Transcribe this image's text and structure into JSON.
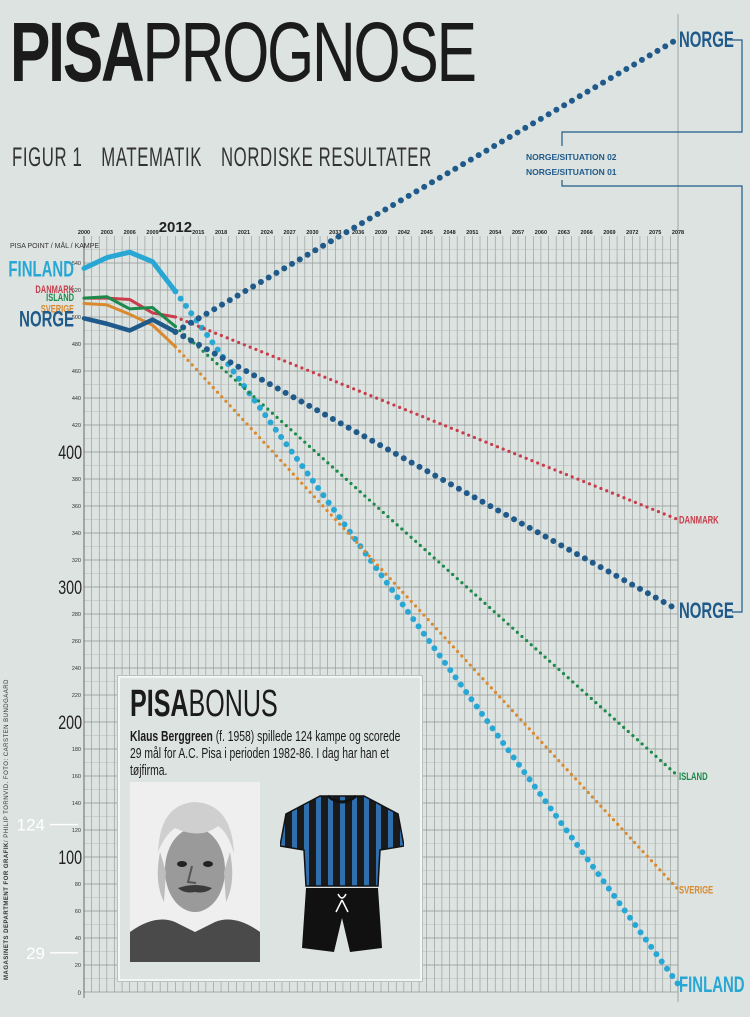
{
  "title": {
    "bold": "PISA",
    "light": "PROGNOSE"
  },
  "subtitle": [
    "FIGUR 1",
    "MATEMATIK",
    "NORDISKE RESULTATER"
  ],
  "legend_notes": {
    "situation_02": "NORGE/SITUATION 02",
    "situation_01": "NORGE/SITUATION 01"
  },
  "credit": {
    "bold": "MAGASINETS DEPARTMENT FOR GRAFIK",
    "rest": "/ PHILIP TORNVID. FOTO: CARSTEN BUNDGAARD"
  },
  "bonus": {
    "title_bold": "PISA",
    "title_light": "BONUS",
    "name": "Klaus Berggreen",
    "text": " (f. 1958) spillede 124 kampe og scorede 29 mål for A.C. Pisa i perioden 1982-86. I dag har han et tøjfirma."
  },
  "chart_data": {
    "type": "line",
    "ylabel": "PISA POINT / MÅL / KAMPE",
    "ylim": [
      0,
      555
    ],
    "y_ticks_small": [
      20,
      40,
      60,
      80,
      120,
      140,
      160,
      180,
      220,
      240,
      260,
      280,
      320,
      340,
      360,
      380,
      420,
      440,
      460,
      480,
      500,
      520,
      540
    ],
    "y_ticks_large": [
      100,
      200,
      300,
      400
    ],
    "x_ticks": [
      "2000",
      "2003",
      "2006",
      "2009",
      "2012",
      "2015",
      "2018",
      "2021",
      "2024",
      "2027",
      "2030",
      "2033",
      "2036",
      "2039",
      "2042",
      "2045",
      "2048",
      "2051",
      "2054",
      "2057",
      "2060",
      "2063",
      "2066",
      "2069",
      "2072",
      "2075",
      "2078"
    ],
    "highlight_year": "2012",
    "marked_values": [
      {
        "label": "124",
        "value": 124
      },
      {
        "label": "29",
        "value": 29
      }
    ],
    "series": [
      {
        "name": "FINLAND",
        "color": "#29a7d4",
        "actual": [
          [
            2000,
            536
          ],
          [
            2003,
            544
          ],
          [
            2006,
            548
          ],
          [
            2009,
            541
          ],
          [
            2012,
            519
          ]
        ],
        "forecast": [
          [
            2012,
            519
          ],
          [
            2078,
            6
          ]
        ]
      },
      {
        "name": "DANMARK",
        "color": "#c83c4b",
        "actual": [
          [
            2000,
            514
          ],
          [
            2003,
            514
          ],
          [
            2006,
            513
          ],
          [
            2009,
            503
          ],
          [
            2012,
            500
          ]
        ],
        "forecast": [
          [
            2012,
            500
          ],
          [
            2078,
            350
          ]
        ]
      },
      {
        "name": "ISLAND",
        "color": "#1c8a4a",
        "actual": [
          [
            2000,
            514
          ],
          [
            2003,
            515
          ],
          [
            2006,
            506
          ],
          [
            2009,
            507
          ],
          [
            2012,
            493
          ]
        ],
        "forecast": [
          [
            2012,
            493
          ],
          [
            2078,
            160
          ]
        ]
      },
      {
        "name": "SVERIGE",
        "color": "#d9892e",
        "actual": [
          [
            2000,
            510
          ],
          [
            2003,
            509
          ],
          [
            2006,
            502
          ],
          [
            2009,
            494
          ],
          [
            2012,
            478
          ]
        ],
        "forecast": [
          [
            2012,
            478
          ],
          [
            2078,
            76
          ]
        ]
      },
      {
        "name": "NORGE",
        "color": "#1f5a8a",
        "actual": [
          [
            2000,
            499
          ],
          [
            2003,
            495
          ],
          [
            2006,
            490
          ],
          [
            2009,
            498
          ],
          [
            2012,
            489
          ]
        ],
        "forecast": [
          [
            2012,
            489
          ],
          [
            2078,
            283
          ]
        ]
      },
      {
        "name": "NORGE",
        "color": "#1f5a8a",
        "actual": [],
        "forecast": [
          [
            2012,
            489
          ],
          [
            2078,
            706
          ]
        ]
      }
    ]
  }
}
